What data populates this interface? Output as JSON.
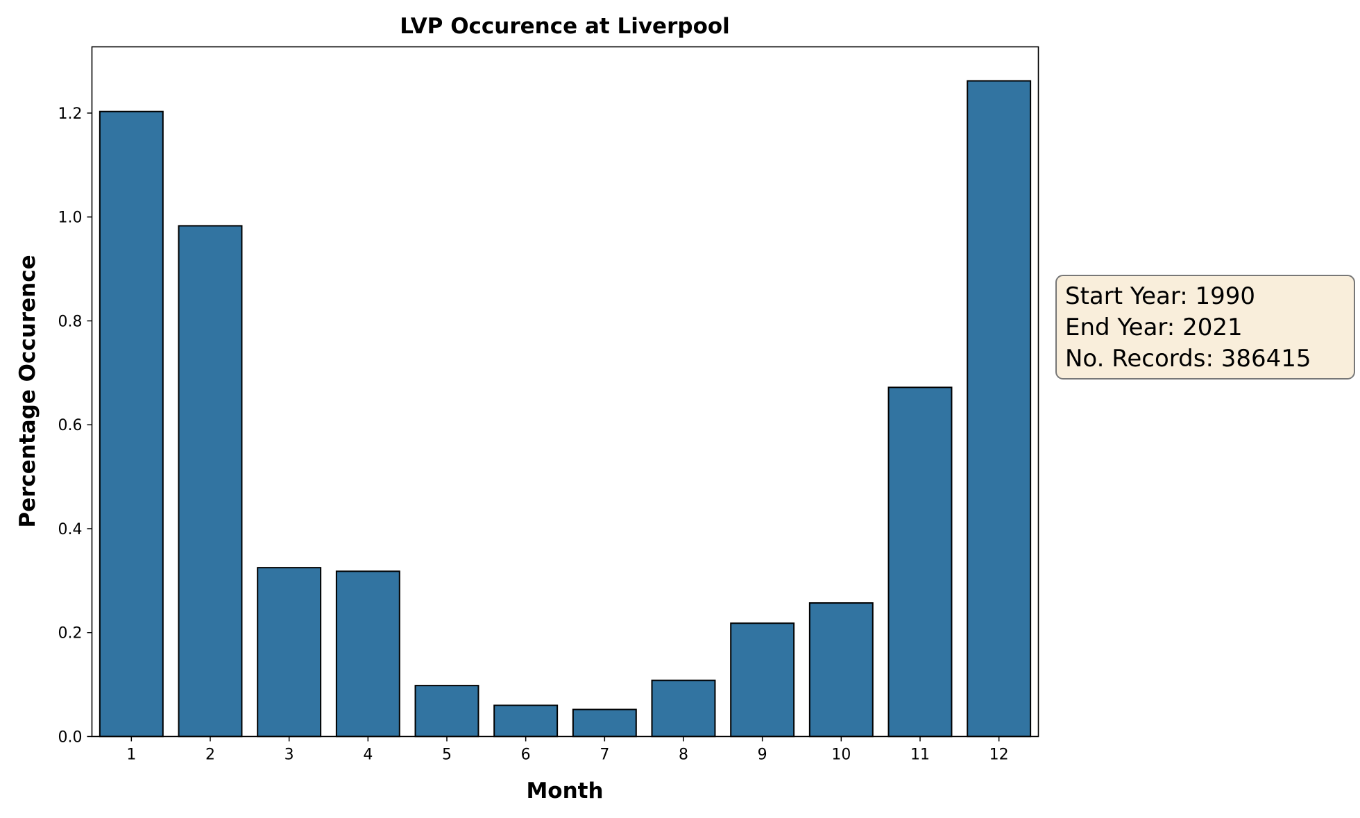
{
  "chart_data": {
    "type": "bar",
    "title": "LVP Occurence at Liverpool",
    "xlabel": "Month",
    "ylabel": "Percentage Occurence",
    "categories": [
      "1",
      "2",
      "3",
      "4",
      "5",
      "6",
      "7",
      "8",
      "9",
      "10",
      "11",
      "12"
    ],
    "values": [
      1.203,
      0.983,
      0.325,
      0.318,
      0.098,
      0.06,
      0.052,
      0.108,
      0.218,
      0.257,
      0.672,
      1.262
    ],
    "ylim": [
      0,
      1.3275
    ],
    "yticks": [
      "0.0",
      "0.2",
      "0.4",
      "0.6",
      "0.8",
      "1.0",
      "1.2"
    ],
    "grid": false,
    "bar_color": "#3274a1",
    "edge_color": "#000000",
    "annotation": {
      "lines": [
        "Start Year: 1990",
        "End Year: 2021",
        "No. Records: 386415"
      ],
      "background": "#f9eedb",
      "border": "#777777"
    }
  }
}
